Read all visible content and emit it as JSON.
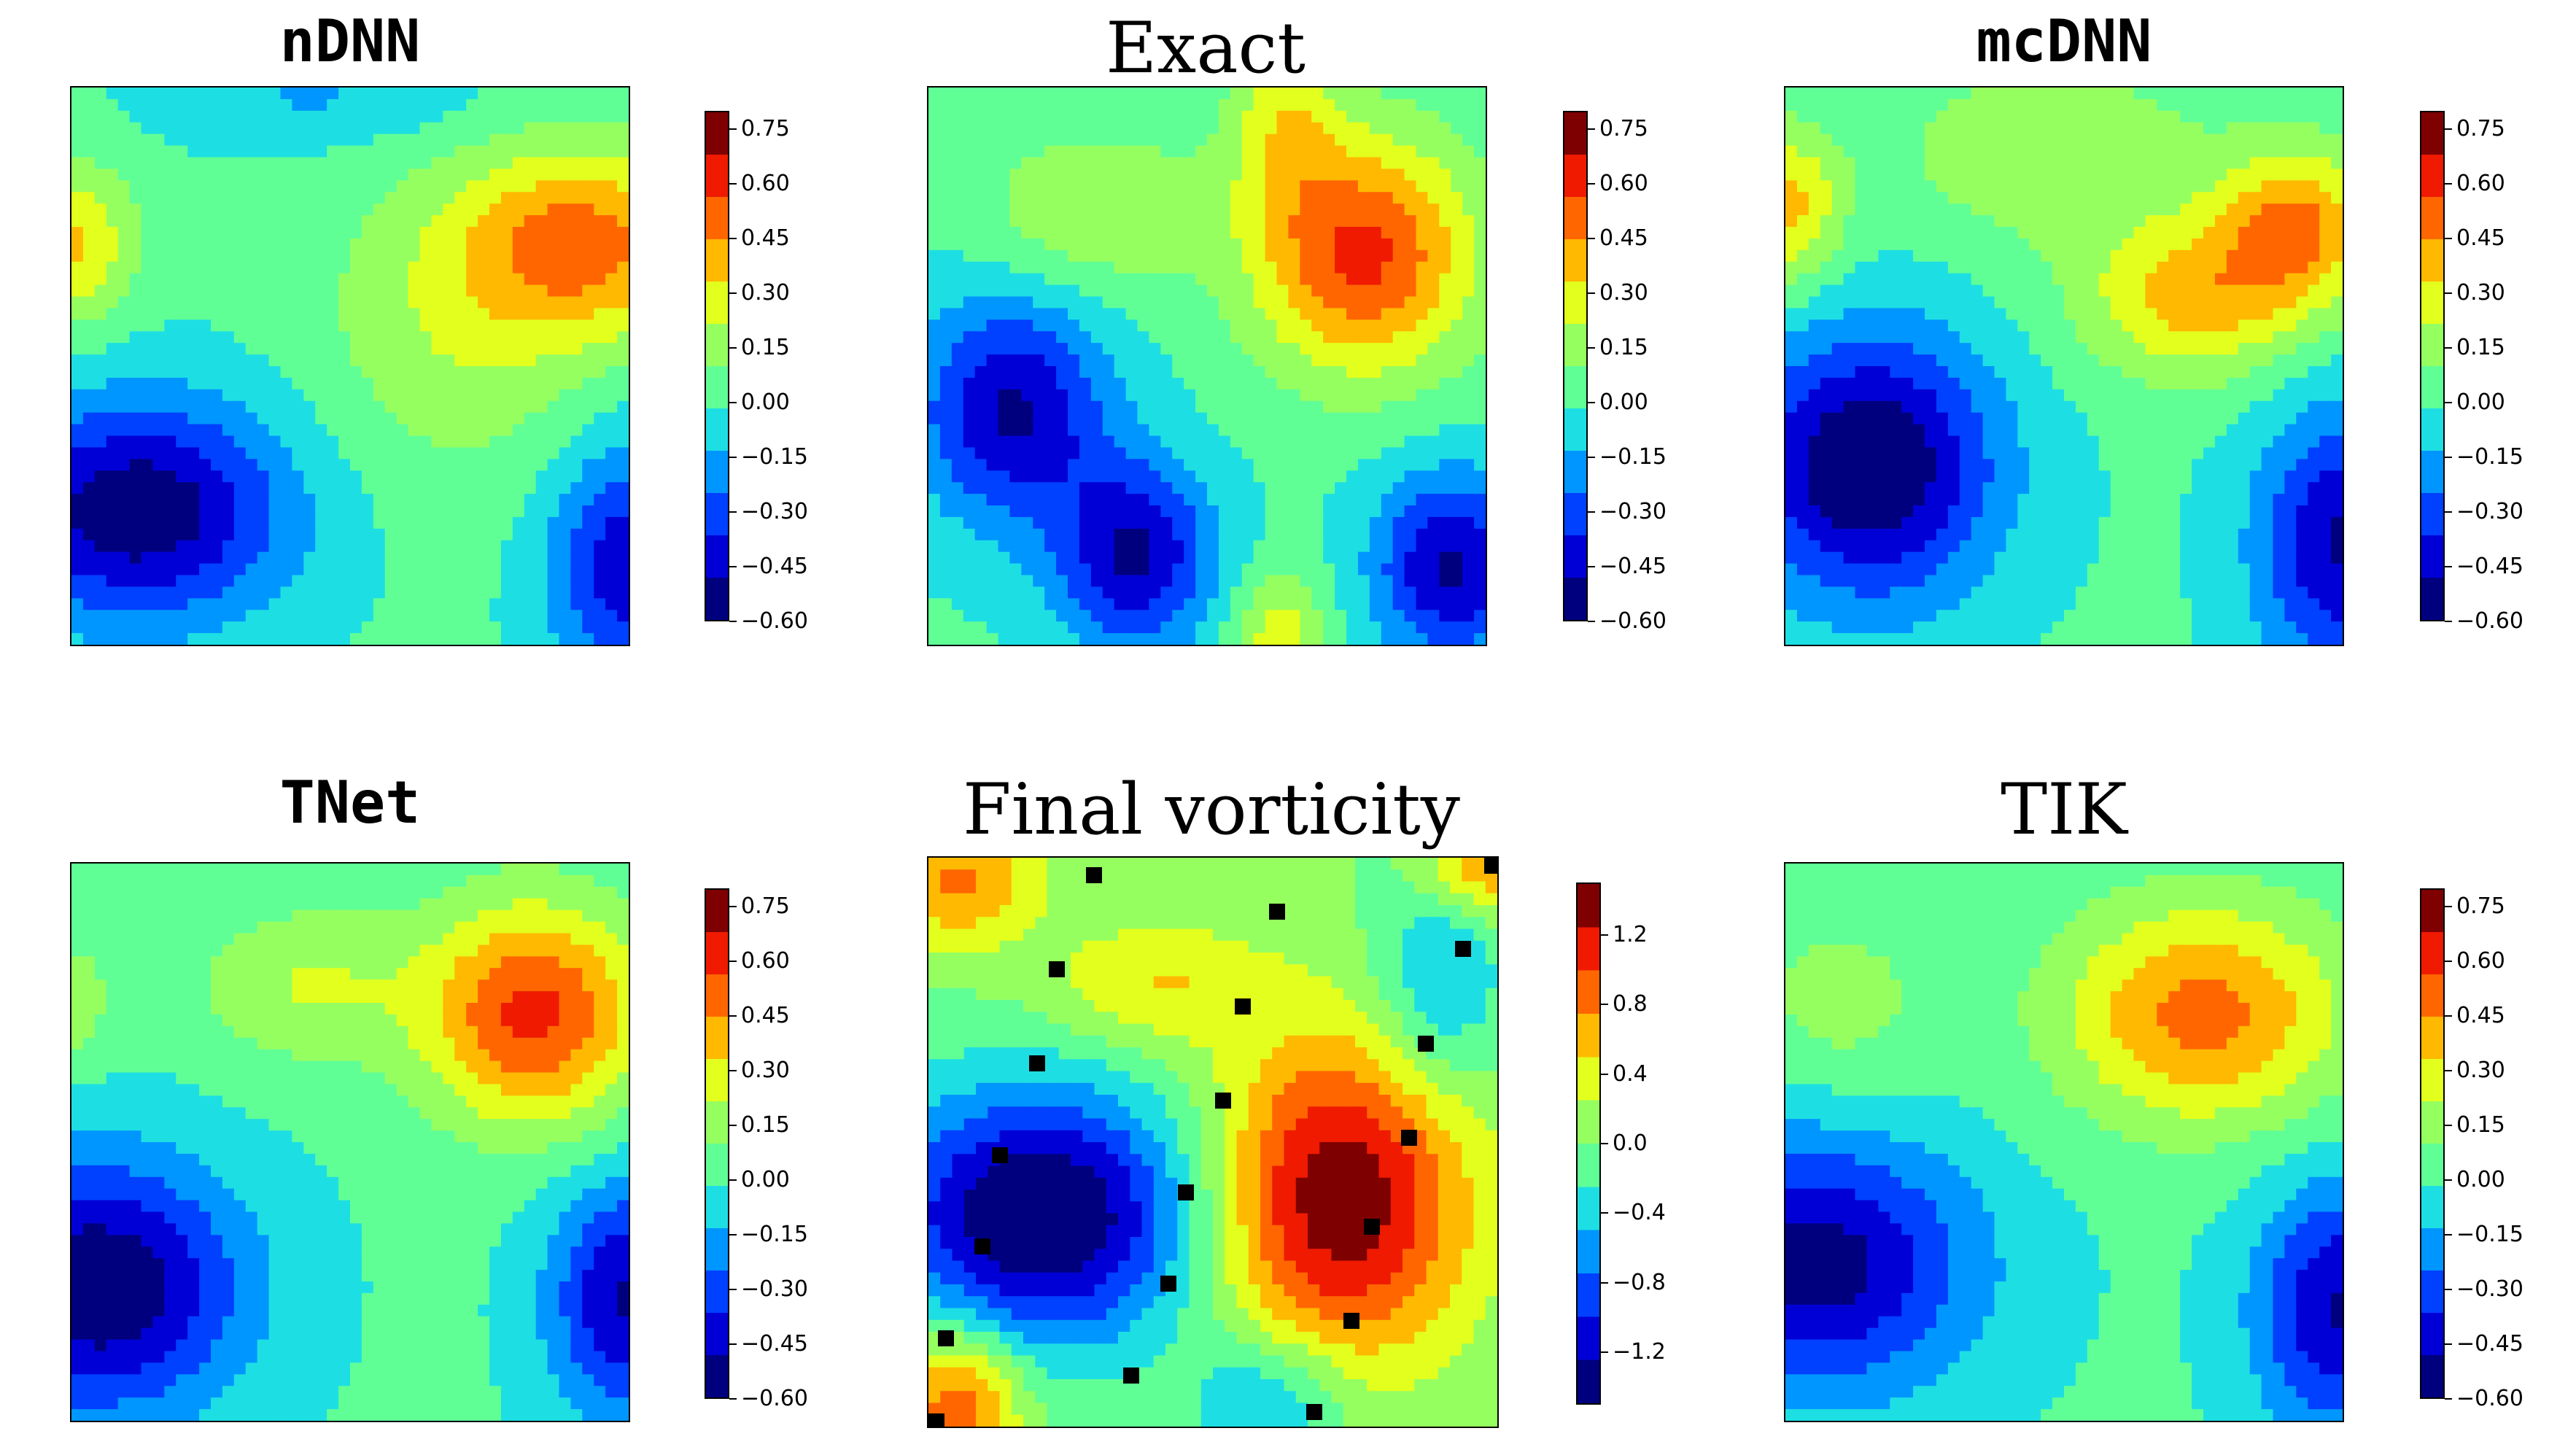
{
  "figure": {
    "colormap": [
      "#00007f",
      "#0000d6",
      "#0040ff",
      "#0096ff",
      "#1ddfe3",
      "#60ff96",
      "#96ff60",
      "#e3ff1d",
      "#ffb900",
      "#ff6600",
      "#ef1a00",
      "#7f0000"
    ]
  },
  "chart_data": [
    {
      "type": "heatmap",
      "title": "nDNN",
      "title_style": "mono",
      "colorbar": {
        "min": -0.6,
        "max": 0.8,
        "ticks": [
          "0.75",
          "0.60",
          "0.45",
          "0.30",
          "0.15",
          "0.00",
          "−0.15",
          "−0.30",
          "−0.45",
          "−0.60"
        ],
        "tick_values": [
          0.75,
          0.6,
          0.45,
          0.3,
          0.15,
          0.0,
          -0.15,
          -0.3,
          -0.45,
          -0.6
        ]
      },
      "features": [
        {
          "x": 0.12,
          "y": 0.76,
          "amp": -0.58,
          "sx": 0.19,
          "sy": 0.14
        },
        {
          "x": 1.0,
          "y": 0.86,
          "amp": -0.45,
          "sx": 0.1,
          "sy": 0.16
        },
        {
          "x": 0.93,
          "y": 0.28,
          "amp": 0.46,
          "sx": 0.16,
          "sy": 0.12
        },
        {
          "x": 0.0,
          "y": 0.28,
          "amp": 0.35,
          "sx": 0.08,
          "sy": 0.1
        },
        {
          "x": 0.7,
          "y": 0.42,
          "amp": 0.2,
          "sx": 0.18,
          "sy": 0.2
        },
        {
          "x": 0.45,
          "y": 0.02,
          "amp": -0.15,
          "sx": 0.2,
          "sy": 0.06
        }
      ]
    },
    {
      "type": "heatmap",
      "title": "Exact",
      "title_style": "serif",
      "colorbar": {
        "min": -0.6,
        "max": 0.8,
        "ticks": [
          "0.75",
          "0.60",
          "0.45",
          "0.30",
          "0.15",
          "0.00",
          "−0.15",
          "−0.30",
          "−0.45",
          "−0.60"
        ],
        "tick_values": [
          0.75,
          0.6,
          0.45,
          0.3,
          0.15,
          0.0,
          -0.15,
          -0.3,
          -0.45,
          -0.6
        ]
      },
      "features": [
        {
          "x": 0.15,
          "y": 0.58,
          "amp": -0.5,
          "sx": 0.12,
          "sy": 0.14
        },
        {
          "x": 0.37,
          "y": 0.84,
          "amp": -0.5,
          "sx": 0.1,
          "sy": 0.12
        },
        {
          "x": 0.94,
          "y": 0.86,
          "amp": -0.5,
          "sx": 0.1,
          "sy": 0.12
        },
        {
          "x": 0.78,
          "y": 0.3,
          "amp": 0.6,
          "sx": 0.14,
          "sy": 0.15
        },
        {
          "x": 0.3,
          "y": 0.22,
          "amp": 0.22,
          "sx": 0.14,
          "sy": 0.1
        },
        {
          "x": 0.64,
          "y": 0.05,
          "amp": 0.25,
          "sx": 0.07,
          "sy": 0.12
        },
        {
          "x": 0.63,
          "y": 1.0,
          "amp": 0.3,
          "sx": 0.06,
          "sy": 0.09
        }
      ]
    },
    {
      "type": "heatmap",
      "title": "mcDNN",
      "title_style": "mono",
      "colorbar": {
        "min": -0.6,
        "max": 0.8,
        "ticks": [
          "0.75",
          "0.60",
          "0.45",
          "0.30",
          "0.15",
          "0.00",
          "−0.15",
          "−0.30",
          "−0.45",
          "−0.60"
        ],
        "tick_values": [
          0.75,
          0.6,
          0.45,
          0.3,
          0.15,
          0.0,
          -0.15,
          -0.3,
          -0.45,
          -0.6
        ]
      },
      "features": [
        {
          "x": 0.15,
          "y": 0.68,
          "amp": -0.62,
          "sx": 0.16,
          "sy": 0.17
        },
        {
          "x": 1.0,
          "y": 0.82,
          "amp": -0.5,
          "sx": 0.11,
          "sy": 0.17
        },
        {
          "x": 0.73,
          "y": 0.38,
          "amp": 0.38,
          "sx": 0.14,
          "sy": 0.1
        },
        {
          "x": 0.92,
          "y": 0.25,
          "amp": 0.45,
          "sx": 0.1,
          "sy": 0.1
        },
        {
          "x": 0.0,
          "y": 0.22,
          "amp": 0.38,
          "sx": 0.07,
          "sy": 0.1
        },
        {
          "x": 0.48,
          "y": 0.12,
          "amp": 0.2,
          "sx": 0.2,
          "sy": 0.12
        }
      ]
    },
    {
      "type": "heatmap",
      "title": "TNet",
      "title_style": "mono",
      "colorbar": {
        "min": -0.6,
        "max": 0.8,
        "ticks": [
          "0.75",
          "0.60",
          "0.45",
          "0.30",
          "0.15",
          "0.00",
          "−0.15",
          "−0.30",
          "−0.45",
          "−0.60"
        ],
        "tick_values": [
          0.75,
          0.6,
          0.45,
          0.3,
          0.15,
          0.0,
          -0.15,
          -0.3,
          -0.45,
          -0.6
        ]
      },
      "features": [
        {
          "x": 0.05,
          "y": 0.76,
          "amp": -0.6,
          "sx": 0.18,
          "sy": 0.16
        },
        {
          "x": 1.0,
          "y": 0.78,
          "amp": -0.5,
          "sx": 0.1,
          "sy": 0.15
        },
        {
          "x": 0.83,
          "y": 0.27,
          "amp": 0.6,
          "sx": 0.14,
          "sy": 0.14
        },
        {
          "x": 0.42,
          "y": 0.22,
          "amp": 0.22,
          "sx": 0.14,
          "sy": 0.1
        },
        {
          "x": 0.0,
          "y": 0.25,
          "amp": 0.18,
          "sx": 0.05,
          "sy": 0.08
        }
      ]
    },
    {
      "type": "heatmap",
      "title": "Final vorticity",
      "title_style": "serif",
      "colorbar": {
        "min": -1.5,
        "max": 1.5,
        "ticks": [
          "1.2",
          "0.8",
          "0.4",
          "0.0",
          "−0.4",
          "−0.8",
          "−1.2"
        ],
        "tick_values": [
          1.2,
          0.8,
          0.4,
          0.0,
          -0.4,
          -0.8,
          -1.2
        ]
      },
      "features": [
        {
          "x": 0.2,
          "y": 0.63,
          "amp": -1.6,
          "sx": 0.2,
          "sy": 0.16
        },
        {
          "x": 0.72,
          "y": 0.6,
          "amp": 1.5,
          "sx": 0.16,
          "sy": 0.2
        },
        {
          "x": 0.05,
          "y": 0.04,
          "amp": 0.8,
          "sx": 0.1,
          "sy": 0.08
        },
        {
          "x": 0.98,
          "y": 0.02,
          "amp": 0.8,
          "sx": 0.08,
          "sy": 0.06
        },
        {
          "x": 0.4,
          "y": 0.22,
          "amp": 0.5,
          "sx": 0.14,
          "sy": 0.08
        },
        {
          "x": 0.05,
          "y": 0.96,
          "amp": 1.0,
          "sx": 0.08,
          "sy": 0.1
        },
        {
          "x": 0.9,
          "y": 0.22,
          "amp": -0.6,
          "sx": 0.08,
          "sy": 0.14
        },
        {
          "x": 0.6,
          "y": 0.95,
          "amp": -0.6,
          "sx": 0.1,
          "sy": 0.08
        }
      ],
      "markers": [
        {
          "x": 0.29,
          "y": 0.03
        },
        {
          "x": 0.61,
          "y": 0.095
        },
        {
          "x": 0.935,
          "y": 0.16
        },
        {
          "x": 0.225,
          "y": 0.195
        },
        {
          "x": 0.55,
          "y": 0.26
        },
        {
          "x": 0.87,
          "y": 0.325
        },
        {
          "x": 0.19,
          "y": 0.36
        },
        {
          "x": 0.515,
          "y": 0.425
        },
        {
          "x": 0.84,
          "y": 0.49
        },
        {
          "x": 0.125,
          "y": 0.52
        },
        {
          "x": 0.45,
          "y": 0.585
        },
        {
          "x": 0.775,
          "y": 0.645
        },
        {
          "x": 0.095,
          "y": 0.68
        },
        {
          "x": 0.42,
          "y": 0.745
        },
        {
          "x": 0.74,
          "y": 0.81
        },
        {
          "x": 0.03,
          "y": 0.84
        },
        {
          "x": 0.355,
          "y": 0.905
        },
        {
          "x": 0.675,
          "y": 0.97
        },
        {
          "x": 1.0,
          "y": 0.0
        },
        {
          "x": 0.0,
          "y": 1.0
        }
      ]
    },
    {
      "type": "heatmap",
      "title": "TIK",
      "title_style": "serif",
      "colorbar": {
        "min": -0.6,
        "max": 0.8,
        "ticks": [
          "0.75",
          "0.60",
          "0.45",
          "0.30",
          "0.15",
          "0.00",
          "−0.15",
          "−0.30",
          "−0.45",
          "−0.60"
        ],
        "tick_values": [
          0.75,
          0.6,
          0.45,
          0.3,
          0.15,
          0.0,
          -0.15,
          -0.3,
          -0.45,
          -0.6
        ]
      },
      "features": [
        {
          "x": 0.05,
          "y": 0.72,
          "amp": -0.55,
          "sx": 0.2,
          "sy": 0.16
        },
        {
          "x": 1.0,
          "y": 0.8,
          "amp": -0.5,
          "sx": 0.11,
          "sy": 0.16
        },
        {
          "x": 0.75,
          "y": 0.27,
          "amp": 0.5,
          "sx": 0.18,
          "sy": 0.14
        },
        {
          "x": 0.1,
          "y": 0.25,
          "amp": 0.15,
          "sx": 0.12,
          "sy": 0.12
        }
      ]
    }
  ]
}
